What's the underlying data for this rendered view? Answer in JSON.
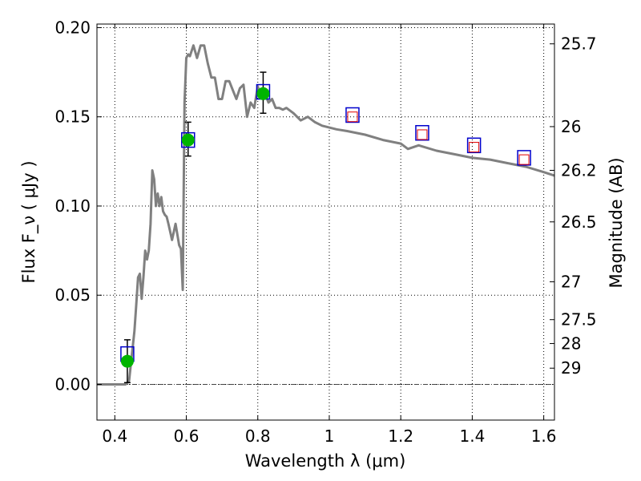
{
  "chart_data": {
    "type": "scatter",
    "xlabel": "Wavelength  λ (μm)",
    "ylabel": "Flux  F_ν  ( μJy )",
    "ylabel_right": "Magnitude (AB)",
    "xlim": [
      0.35,
      1.63
    ],
    "ylim": [
      -0.02,
      0.202
    ],
    "x_ticks": [
      0.4,
      0.6,
      0.8,
      1.0,
      1.2,
      1.4,
      1.6
    ],
    "x_tick_labels": [
      "0.4",
      "0.6",
      "0.8",
      "1",
      "1.2",
      "1.4",
      "1.6"
    ],
    "y_ticks": [
      0.0,
      0.05,
      0.1,
      0.15,
      0.2
    ],
    "y_tick_labels": [
      "0.00",
      "0.05",
      "0.10",
      "0.15",
      "0.20"
    ],
    "mag_ticks": [
      {
        "label": "25.7",
        "flux": 0.1909
      },
      {
        "label": "26",
        "flux": 0.1445
      },
      {
        "label": "26.2",
        "flux": 0.12
      },
      {
        "label": "26.5",
        "flux": 0.0911
      },
      {
        "label": "27",
        "flux": 0.0575
      },
      {
        "label": "27.5",
        "flux": 0.0363
      },
      {
        "label": "28",
        "flux": 0.0229
      },
      {
        "label": "29",
        "flux": 0.0091
      }
    ],
    "grid": true,
    "colors": {
      "model": "#808080",
      "observed": "#00b400",
      "synthetic_box": "#0000cc",
      "upper_box": "#e00000",
      "zero_line": "#444444"
    },
    "model_spectrum": {
      "x": [
        0.35,
        0.43,
        0.435,
        0.44,
        0.455,
        0.46,
        0.465,
        0.47,
        0.475,
        0.48,
        0.485,
        0.49,
        0.495,
        0.5,
        0.505,
        0.51,
        0.515,
        0.52,
        0.525,
        0.53,
        0.535,
        0.54,
        0.545,
        0.55,
        0.56,
        0.57,
        0.58,
        0.585,
        0.59,
        0.595,
        0.6,
        0.605,
        0.61,
        0.62,
        0.63,
        0.64,
        0.65,
        0.66,
        0.67,
        0.68,
        0.69,
        0.7,
        0.71,
        0.72,
        0.73,
        0.74,
        0.75,
        0.76,
        0.77,
        0.78,
        0.79,
        0.8,
        0.81,
        0.82,
        0.83,
        0.84,
        0.85,
        0.86,
        0.87,
        0.88,
        0.9,
        0.92,
        0.94,
        0.96,
        0.98,
        1.0,
        1.02,
        1.05,
        1.1,
        1.15,
        1.2,
        1.22,
        1.25,
        1.3,
        1.35,
        1.4,
        1.45,
        1.5,
        1.55,
        1.6,
        1.63
      ],
      "y": [
        0.0,
        0.0,
        0.001,
        0.002,
        0.03,
        0.045,
        0.06,
        0.062,
        0.048,
        0.06,
        0.075,
        0.07,
        0.075,
        0.09,
        0.12,
        0.115,
        0.1,
        0.107,
        0.1,
        0.105,
        0.097,
        0.095,
        0.094,
        0.09,
        0.081,
        0.09,
        0.078,
        0.076,
        0.053,
        0.158,
        0.183,
        0.185,
        0.184,
        0.19,
        0.183,
        0.19,
        0.19,
        0.18,
        0.172,
        0.172,
        0.16,
        0.16,
        0.17,
        0.17,
        0.165,
        0.16,
        0.166,
        0.168,
        0.15,
        0.158,
        0.155,
        0.167,
        0.161,
        0.163,
        0.158,
        0.16,
        0.155,
        0.155,
        0.154,
        0.155,
        0.152,
        0.148,
        0.15,
        0.147,
        0.145,
        0.144,
        0.143,
        0.142,
        0.14,
        0.137,
        0.135,
        0.132,
        0.134,
        0.131,
        0.129,
        0.127,
        0.126,
        0.124,
        0.122,
        0.119,
        0.117
      ]
    },
    "observed": [
      {
        "x": 0.435,
        "y": 0.013,
        "err_lo": 0.012,
        "err_hi": 0.012
      },
      {
        "x": 0.605,
        "y": 0.137,
        "err_lo": 0.009,
        "err_hi": 0.01
      },
      {
        "x": 0.815,
        "y": 0.163,
        "err_lo": 0.011,
        "err_hi": 0.012
      }
    ],
    "synthetic": [
      {
        "x": 0.435,
        "y": 0.017
      },
      {
        "x": 0.605,
        "y": 0.137
      },
      {
        "x": 0.815,
        "y": 0.164
      },
      {
        "x": 1.065,
        "y": 0.151
      },
      {
        "x": 1.26,
        "y": 0.141
      },
      {
        "x": 1.405,
        "y": 0.134
      },
      {
        "x": 1.545,
        "y": 0.127
      }
    ],
    "upper_limit_markers": [
      {
        "x": 1.065,
        "y": 0.15
      },
      {
        "x": 1.26,
        "y": 0.14
      },
      {
        "x": 1.405,
        "y": 0.133
      },
      {
        "x": 1.545,
        "y": 0.126
      }
    ]
  }
}
